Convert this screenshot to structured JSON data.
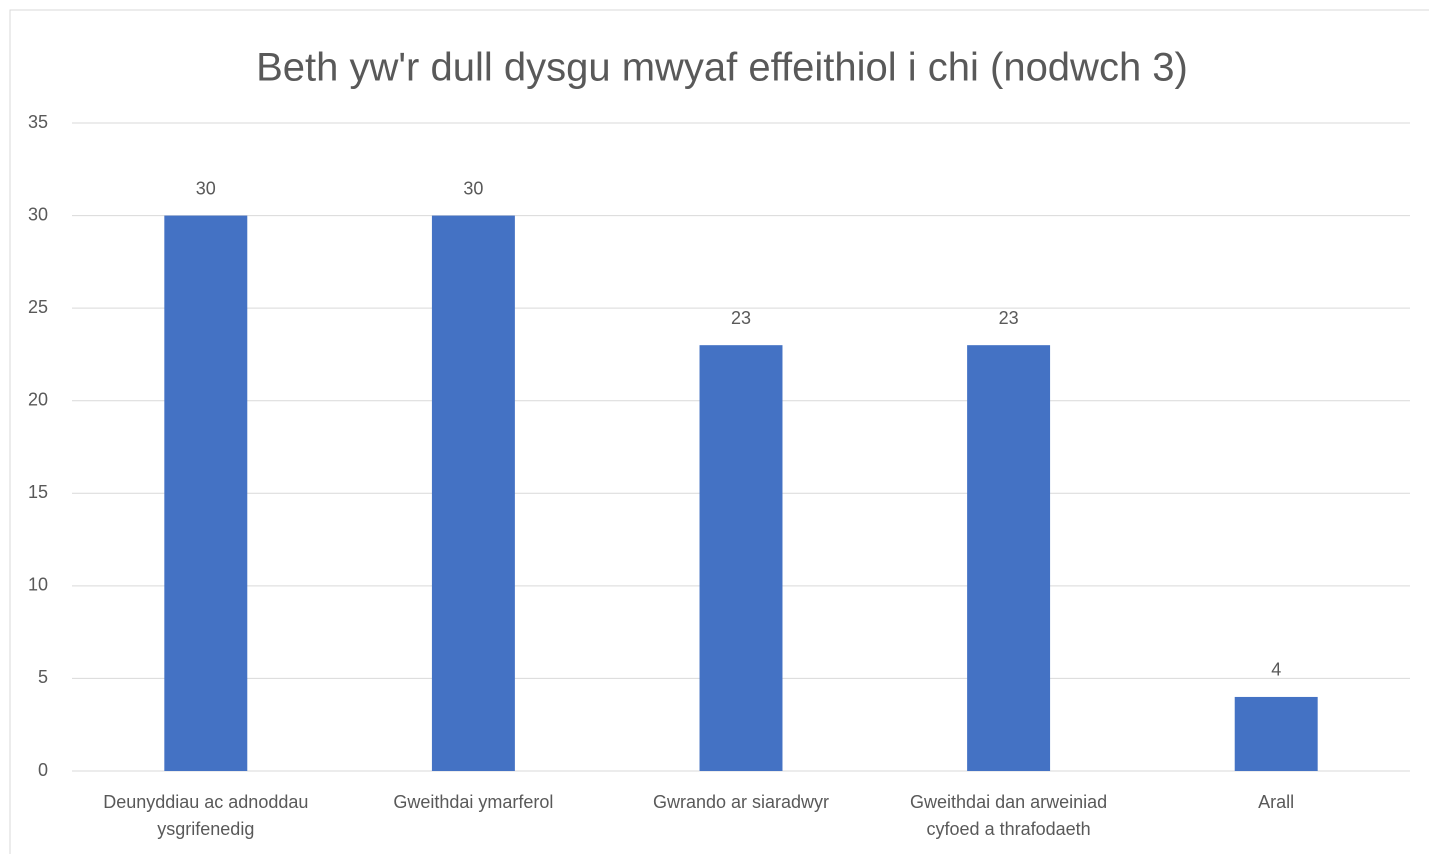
{
  "chart_data": {
    "type": "bar",
    "title": "Beth yw'r dull dysgu mwyaf effeithiol i chi (nodwch 3)",
    "categories": [
      "Deunyddiau ac adnoddau ysgrifenedig",
      "Gweithdai ymarferol",
      "Gwrando ar siaradwyr",
      "Gweithdai dan arweiniad cyfoed a thrafodaeth",
      "Arall"
    ],
    "values": [
      30,
      30,
      23,
      23,
      4
    ],
    "color": "#4472c4",
    "ylim": [
      0,
      35
    ],
    "yticks": [
      0,
      5,
      10,
      15,
      20,
      25,
      30,
      35
    ],
    "grid": true
  }
}
